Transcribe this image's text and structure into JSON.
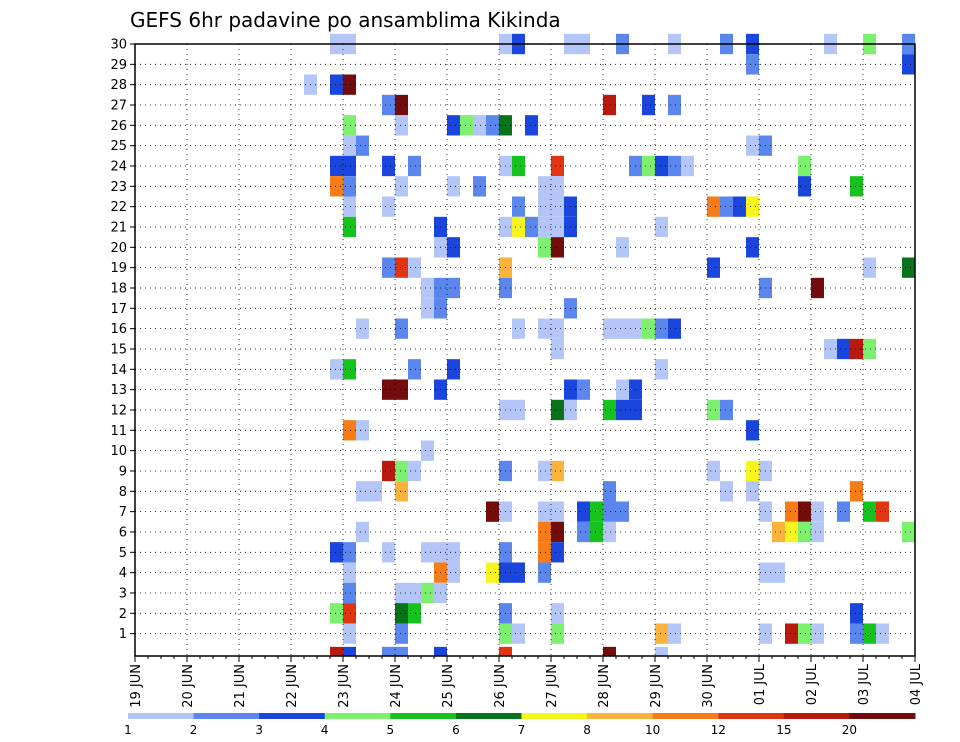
{
  "chart_data": {
    "type": "heatmap",
    "title": "GEFS 6hr padavine po ansamblima Kikinda",
    "xlabel": "",
    "ylabel": "",
    "x_dates": [
      "19 JUN",
      "20 JUN",
      "21 JUN",
      "22 JUN",
      "23 JUN",
      "24 JUN",
      "25 JUN",
      "26 JUN",
      "27 JUN",
      "28 JUN",
      "29 JUN",
      "30 JUN",
      "01 JUL",
      "02 JUL",
      "03 JUL",
      "04 JUL"
    ],
    "x_step_hours": 6,
    "ylim": [
      0,
      30
    ],
    "y_ticks": [
      1,
      2,
      3,
      4,
      5,
      6,
      7,
      8,
      9,
      10,
      11,
      12,
      13,
      14,
      15,
      16,
      17,
      18,
      19,
      20,
      21,
      22,
      23,
      24,
      25,
      26,
      27,
      28,
      29,
      30
    ],
    "grid": true,
    "colorbar": {
      "labels": [
        "1",
        "2",
        "3",
        "4",
        "5",
        "6",
        "7",
        "8",
        "10",
        "12",
        "15",
        "20"
      ],
      "colors": [
        "#b3c6f7",
        "#5b86ee",
        "#1a46de",
        "#7ef070",
        "#16c21e",
        "#08731a",
        "#f8f51e",
        "#fbb33c",
        "#f77c16",
        "#e0350e",
        "#b81a0f",
        "#730c0c"
      ]
    },
    "cells": [
      [
        30,
        15,
        0
      ],
      [
        30,
        16,
        0
      ],
      [
        30,
        28,
        0
      ],
      [
        30,
        29,
        2
      ],
      [
        30,
        33,
        0
      ],
      [
        30,
        34,
        0
      ],
      [
        30,
        37,
        1
      ],
      [
        30,
        41,
        0
      ],
      [
        30,
        45,
        1
      ],
      [
        30,
        47,
        2
      ],
      [
        30,
        53,
        0
      ],
      [
        30,
        56,
        3
      ],
      [
        30,
        59,
        1
      ],
      [
        29,
        47,
        1
      ],
      [
        29,
        59,
        2
      ],
      [
        28,
        13,
        0
      ],
      [
        28,
        15,
        2
      ],
      [
        28,
        16,
        11
      ],
      [
        27,
        19,
        1
      ],
      [
        27,
        20,
        11
      ],
      [
        27,
        36,
        10
      ],
      [
        27,
        39,
        2
      ],
      [
        27,
        41,
        1
      ],
      [
        26,
        16,
        3
      ],
      [
        26,
        20,
        0
      ],
      [
        26,
        24,
        2
      ],
      [
        26,
        25,
        3
      ],
      [
        26,
        26,
        0
      ],
      [
        26,
        27,
        1
      ],
      [
        26,
        28,
        5
      ],
      [
        26,
        30,
        2
      ],
      [
        25,
        16,
        0
      ],
      [
        25,
        17,
        1
      ],
      [
        25,
        47,
        0
      ],
      [
        25,
        48,
        1
      ],
      [
        24,
        15,
        2
      ],
      [
        24,
        16,
        2
      ],
      [
        24,
        19,
        2
      ],
      [
        24,
        21,
        1
      ],
      [
        24,
        28,
        0
      ],
      [
        24,
        29,
        4
      ],
      [
        24,
        32,
        9
      ],
      [
        24,
        38,
        1
      ],
      [
        24,
        39,
        3
      ],
      [
        24,
        40,
        2
      ],
      [
        24,
        41,
        1
      ],
      [
        24,
        42,
        0
      ],
      [
        24,
        51,
        3
      ],
      [
        23,
        15,
        8
      ],
      [
        23,
        16,
        1
      ],
      [
        23,
        20,
        0
      ],
      [
        23,
        24,
        0
      ],
      [
        23,
        26,
        1
      ],
      [
        23,
        31,
        0
      ],
      [
        23,
        32,
        0
      ],
      [
        23,
        51,
        2
      ],
      [
        23,
        55,
        4
      ],
      [
        22,
        16,
        0
      ],
      [
        22,
        19,
        0
      ],
      [
        22,
        29,
        1
      ],
      [
        22,
        31,
        0
      ],
      [
        22,
        32,
        0
      ],
      [
        22,
        33,
        2
      ],
      [
        22,
        44,
        8
      ],
      [
        22,
        45,
        1
      ],
      [
        22,
        46,
        2
      ],
      [
        22,
        47,
        6
      ],
      [
        21,
        16,
        4
      ],
      [
        21,
        23,
        2
      ],
      [
        21,
        28,
        0
      ],
      [
        21,
        29,
        6
      ],
      [
        21,
        30,
        1
      ],
      [
        21,
        31,
        0
      ],
      [
        21,
        32,
        0
      ],
      [
        21,
        33,
        2
      ],
      [
        21,
        40,
        0
      ],
      [
        20,
        23,
        0
      ],
      [
        20,
        24,
        2
      ],
      [
        20,
        31,
        3
      ],
      [
        20,
        32,
        11
      ],
      [
        20,
        37,
        0
      ],
      [
        20,
        47,
        2
      ],
      [
        19,
        19,
        1
      ],
      [
        19,
        20,
        9
      ],
      [
        19,
        21,
        0
      ],
      [
        19,
        28,
        7
      ],
      [
        19,
        44,
        2
      ],
      [
        19,
        56,
        0
      ],
      [
        19,
        59,
        5
      ],
      [
        18,
        22,
        0
      ],
      [
        18,
        23,
        1
      ],
      [
        18,
        24,
        1
      ],
      [
        18,
        28,
        1
      ],
      [
        18,
        48,
        1
      ],
      [
        18,
        52,
        11
      ],
      [
        17,
        22,
        0
      ],
      [
        17,
        23,
        1
      ],
      [
        17,
        33,
        1
      ],
      [
        16,
        17,
        0
      ],
      [
        16,
        20,
        1
      ],
      [
        16,
        29,
        0
      ],
      [
        16,
        31,
        0
      ],
      [
        16,
        32,
        0
      ],
      [
        16,
        36,
        0
      ],
      [
        16,
        37,
        0
      ],
      [
        16,
        38,
        0
      ],
      [
        16,
        39,
        3
      ],
      [
        16,
        40,
        1
      ],
      [
        16,
        41,
        2
      ],
      [
        15,
        32,
        0
      ],
      [
        15,
        53,
        0
      ],
      [
        15,
        54,
        2
      ],
      [
        15,
        55,
        10
      ],
      [
        15,
        56,
        3
      ],
      [
        14,
        15,
        0
      ],
      [
        14,
        16,
        4
      ],
      [
        14,
        21,
        1
      ],
      [
        14,
        24,
        2
      ],
      [
        14,
        40,
        0
      ],
      [
        13,
        19,
        11
      ],
      [
        13,
        20,
        11
      ],
      [
        13,
        23,
        2
      ],
      [
        13,
        33,
        2
      ],
      [
        13,
        34,
        1
      ],
      [
        13,
        37,
        0
      ],
      [
        13,
        38,
        2
      ],
      [
        12,
        28,
        0
      ],
      [
        12,
        29,
        0
      ],
      [
        12,
        32,
        5
      ],
      [
        12,
        33,
        0
      ],
      [
        12,
        36,
        4
      ],
      [
        12,
        37,
        2
      ],
      [
        12,
        38,
        2
      ],
      [
        12,
        44,
        3
      ],
      [
        12,
        45,
        1
      ],
      [
        11,
        16,
        8
      ],
      [
        11,
        17,
        0
      ],
      [
        11,
        47,
        2
      ],
      [
        10,
        22,
        0
      ],
      [
        9,
        19,
        10
      ],
      [
        9,
        20,
        3
      ],
      [
        9,
        21,
        0
      ],
      [
        9,
        28,
        1
      ],
      [
        9,
        31,
        0
      ],
      [
        9,
        32,
        7
      ],
      [
        9,
        44,
        0
      ],
      [
        9,
        47,
        6
      ],
      [
        9,
        48,
        0
      ],
      [
        8,
        17,
        0
      ],
      [
        8,
        18,
        0
      ],
      [
        8,
        20,
        7
      ],
      [
        8,
        36,
        1
      ],
      [
        8,
        45,
        0
      ],
      [
        8,
        47,
        0
      ],
      [
        8,
        55,
        8
      ],
      [
        7,
        27,
        11
      ],
      [
        7,
        28,
        0
      ],
      [
        7,
        31,
        0
      ],
      [
        7,
        32,
        0
      ],
      [
        7,
        34,
        2
      ],
      [
        7,
        35,
        4
      ],
      [
        7,
        36,
        1
      ],
      [
        7,
        37,
        1
      ],
      [
        7,
        48,
        0
      ],
      [
        7,
        50,
        8
      ],
      [
        7,
        51,
        11
      ],
      [
        7,
        52,
        0
      ],
      [
        7,
        54,
        1
      ],
      [
        7,
        56,
        4
      ],
      [
        7,
        57,
        9
      ],
      [
        6,
        17,
        0
      ],
      [
        6,
        31,
        8
      ],
      [
        6,
        32,
        11
      ],
      [
        6,
        34,
        1
      ],
      [
        6,
        35,
        4
      ],
      [
        6,
        36,
        0
      ],
      [
        6,
        49,
        7
      ],
      [
        6,
        50,
        6
      ],
      [
        6,
        51,
        3
      ],
      [
        6,
        52,
        0
      ],
      [
        6,
        59,
        3
      ],
      [
        5,
        15,
        2
      ],
      [
        5,
        16,
        1
      ],
      [
        5,
        19,
        0
      ],
      [
        5,
        22,
        0
      ],
      [
        5,
        23,
        0
      ],
      [
        5,
        24,
        0
      ],
      [
        5,
        28,
        1
      ],
      [
        5,
        31,
        8
      ],
      [
        5,
        32,
        2
      ],
      [
        4,
        16,
        0
      ],
      [
        4,
        23,
        8
      ],
      [
        4,
        24,
        0
      ],
      [
        4,
        27,
        6
      ],
      [
        4,
        28,
        2
      ],
      [
        4,
        29,
        2
      ],
      [
        4,
        31,
        1
      ],
      [
        4,
        48,
        0
      ],
      [
        4,
        49,
        0
      ],
      [
        3,
        16,
        1
      ],
      [
        3,
        20,
        0
      ],
      [
        3,
        21,
        0
      ],
      [
        3,
        22,
        3
      ],
      [
        3,
        23,
        0
      ],
      [
        2,
        15,
        3
      ],
      [
        2,
        16,
        9
      ],
      [
        2,
        20,
        5
      ],
      [
        2,
        21,
        4
      ],
      [
        2,
        28,
        1
      ],
      [
        2,
        32,
        0
      ],
      [
        2,
        55,
        2
      ],
      [
        1,
        16,
        0
      ],
      [
        1,
        20,
        1
      ],
      [
        1,
        28,
        3
      ],
      [
        1,
        29,
        0
      ],
      [
        1,
        32,
        3
      ],
      [
        1,
        40,
        7
      ],
      [
        1,
        41,
        0
      ],
      [
        1,
        48,
        0
      ],
      [
        1,
        50,
        10
      ],
      [
        1,
        51,
        3
      ],
      [
        1,
        52,
        0
      ],
      [
        1,
        55,
        1
      ],
      [
        1,
        56,
        4
      ],
      [
        1,
        57,
        0
      ],
      [
        0,
        15,
        10
      ],
      [
        0,
        16,
        2
      ],
      [
        0,
        19,
        1
      ],
      [
        0,
        20,
        1
      ],
      [
        0,
        23,
        2
      ],
      [
        0,
        28,
        9
      ],
      [
        0,
        36,
        11
      ],
      [
        0,
        40,
        0
      ]
    ]
  }
}
